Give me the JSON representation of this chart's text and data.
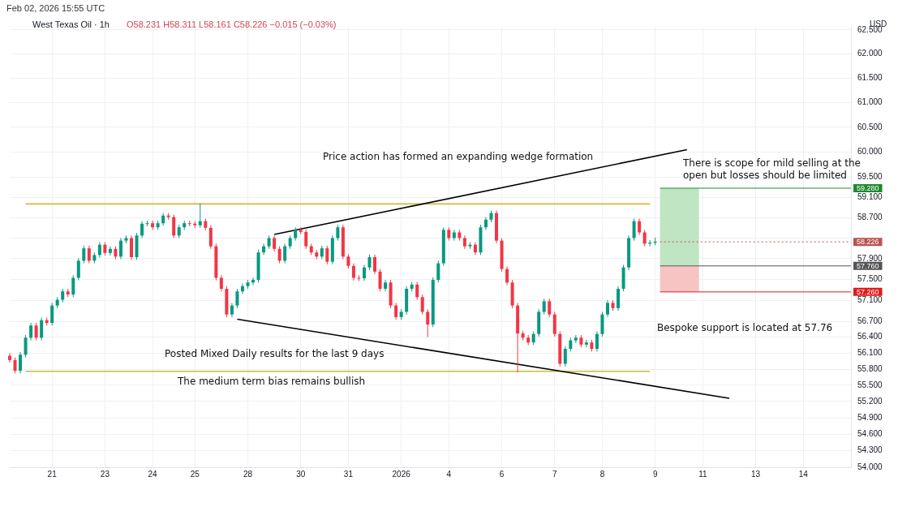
{
  "chart_data": {
    "type": "candlestick",
    "title": "West Texas Oil · 1h",
    "subtitle": "O58.231 H58.311 L58.161 C58.226 −0.015 (−0.03%)",
    "ylabel": "USD",
    "annotations": [
      "Feb 02, 2026 15:55 UTC",
      "Price action has formed an expanding wedge formation",
      "There is scope for mild selling at the open but losses should be limited",
      "Bespoke support is located at 57.76",
      "Posted Mixed Daily results for the last 9 days",
      "The medium term bias remains bullish"
    ],
    "categories": [
      null,
      null,
      null,
      null,
      null,
      null,
      null,
      null,
      "21",
      null,
      null,
      null,
      null,
      null,
      null,
      null,
      null,
      null,
      "23",
      null,
      null,
      null,
      null,
      null,
      null,
      null,
      null,
      "24",
      null,
      null,
      null,
      null,
      null,
      null,
      null,
      "25",
      null,
      null,
      null,
      null,
      null,
      null,
      null,
      null,
      null,
      "28",
      null,
      null,
      null,
      null,
      null,
      null,
      null,
      null,
      null,
      "30",
      null,
      null,
      null,
      null,
      null,
      null,
      null,
      null,
      "31",
      null,
      null,
      null,
      null,
      null,
      null,
      null,
      null,
      null,
      "2026",
      null,
      null,
      null,
      null,
      null,
      null,
      null,
      null,
      "4",
      null,
      null,
      null,
      null,
      null,
      null,
      null,
      null,
      null,
      "6",
      null,
      null,
      null,
      null,
      null,
      null,
      null,
      null,
      null,
      "7",
      null,
      null,
      null,
      null,
      null,
      null,
      null,
      null,
      "8",
      null,
      null,
      null,
      null,
      null,
      null,
      null,
      null,
      null,
      "9",
      null,
      null,
      null,
      null,
      null,
      null,
      null,
      null,
      "11",
      null,
      null,
      null,
      null,
      null,
      null,
      null,
      null,
      null,
      "13",
      null,
      null,
      null,
      null,
      null,
      null,
      null,
      null,
      "14",
      null,
      null,
      null,
      null,
      null,
      null,
      null,
      null,
      null
    ],
    "ohlc": [
      [
        56.05,
        56.1,
        55.92,
        55.97
      ],
      [
        55.97,
        56.02,
        55.72,
        55.77
      ],
      [
        55.77,
        56.12,
        55.72,
        56.07
      ],
      [
        56.07,
        56.44,
        56.02,
        56.39
      ],
      [
        56.39,
        56.67,
        56.34,
        56.62
      ],
      [
        56.62,
        56.67,
        56.34,
        56.39
      ],
      [
        56.39,
        56.77,
        56.34,
        56.72
      ],
      [
        56.72,
        56.77,
        56.62,
        56.67
      ],
      [
        56.67,
        57.05,
        56.62,
        57.0
      ],
      [
        57.0,
        57.16,
        56.95,
        57.11
      ],
      [
        57.11,
        57.32,
        57.06,
        57.27
      ],
      [
        57.27,
        57.32,
        57.16,
        57.21
      ],
      [
        57.21,
        57.58,
        57.16,
        57.53
      ],
      [
        57.53,
        57.91,
        57.48,
        57.86
      ],
      [
        57.86,
        58.15,
        57.81,
        58.1
      ],
      [
        58.1,
        58.15,
        57.81,
        57.86
      ],
      [
        57.86,
        58.02,
        57.81,
        57.97
      ],
      [
        57.97,
        58.22,
        57.92,
        58.17
      ],
      [
        58.17,
        58.22,
        57.96,
        58.01
      ],
      [
        58.01,
        58.14,
        57.96,
        58.09
      ],
      [
        58.09,
        58.14,
        57.89,
        57.94
      ],
      [
        57.94,
        58.3,
        57.89,
        58.25
      ],
      [
        58.25,
        58.35,
        58.2,
        58.3
      ],
      [
        58.3,
        58.35,
        57.88,
        57.93
      ],
      [
        57.93,
        58.4,
        57.88,
        58.35
      ],
      [
        58.35,
        58.63,
        58.3,
        58.58
      ],
      [
        58.58,
        58.64,
        58.53,
        58.59
      ],
      [
        58.59,
        58.64,
        58.46,
        58.51
      ],
      [
        58.51,
        58.64,
        58.46,
        58.59
      ],
      [
        58.59,
        58.79,
        58.54,
        58.74
      ],
      [
        58.74,
        58.79,
        58.66,
        58.71
      ],
      [
        58.71,
        58.76,
        58.3,
        58.35
      ],
      [
        58.35,
        58.56,
        58.3,
        58.51
      ],
      [
        58.51,
        58.64,
        58.46,
        58.59
      ],
      [
        58.59,
        58.64,
        58.53,
        58.58
      ],
      [
        58.58,
        58.63,
        58.5,
        58.55
      ],
      [
        58.55,
        58.98,
        58.5,
        58.63
      ],
      [
        58.63,
        58.68,
        58.45,
        58.5
      ],
      [
        58.5,
        58.55,
        58.09,
        58.14
      ],
      [
        58.14,
        58.19,
        57.48,
        57.53
      ],
      [
        57.53,
        57.58,
        57.27,
        57.32
      ],
      [
        57.32,
        57.37,
        56.78,
        56.83
      ],
      [
        56.83,
        57.05,
        56.78,
        57.0
      ],
      [
        57.0,
        57.32,
        56.95,
        57.27
      ],
      [
        57.27,
        57.42,
        57.22,
        57.37
      ],
      [
        57.37,
        57.49,
        57.32,
        57.44
      ],
      [
        57.44,
        57.54,
        57.39,
        57.49
      ],
      [
        57.49,
        58.07,
        57.44,
        58.02
      ],
      [
        58.02,
        58.19,
        57.97,
        58.14
      ],
      [
        58.14,
        58.35,
        58.09,
        58.3
      ],
      [
        58.3,
        58.35,
        58.04,
        58.09
      ],
      [
        58.09,
        58.14,
        57.81,
        57.86
      ],
      [
        57.86,
        58.19,
        57.81,
        58.14
      ],
      [
        58.14,
        58.35,
        58.09,
        58.3
      ],
      [
        58.3,
        58.51,
        58.25,
        58.46
      ],
      [
        58.46,
        58.51,
        58.37,
        58.42
      ],
      [
        58.42,
        58.47,
        58.09,
        58.14
      ],
      [
        58.14,
        58.19,
        57.97,
        58.02
      ],
      [
        58.02,
        58.07,
        57.89,
        57.94
      ],
      [
        57.94,
        58.15,
        57.89,
        58.1
      ],
      [
        58.1,
        58.15,
        57.79,
        57.84
      ],
      [
        57.84,
        58.35,
        57.79,
        58.3
      ],
      [
        58.3,
        58.56,
        58.25,
        58.51
      ],
      [
        58.51,
        58.56,
        57.89,
        57.94
      ],
      [
        57.94,
        57.99,
        57.71,
        57.76
      ],
      [
        57.76,
        57.81,
        57.48,
        57.53
      ],
      [
        57.53,
        57.58,
        57.47,
        57.52
      ],
      [
        57.52,
        57.78,
        57.47,
        57.73
      ],
      [
        57.73,
        57.98,
        57.68,
        57.93
      ],
      [
        57.93,
        57.98,
        57.6,
        57.65
      ],
      [
        57.65,
        57.7,
        57.27,
        57.32
      ],
      [
        57.32,
        57.49,
        57.27,
        57.44
      ],
      [
        57.44,
        57.49,
        56.95,
        57.0
      ],
      [
        57.0,
        57.05,
        56.73,
        56.78
      ],
      [
        56.78,
        56.93,
        56.73,
        56.88
      ],
      [
        56.88,
        57.37,
        56.83,
        57.32
      ],
      [
        57.32,
        57.45,
        57.27,
        57.4
      ],
      [
        57.4,
        57.45,
        57.11,
        57.16
      ],
      [
        57.16,
        57.21,
        56.83,
        56.88
      ],
      [
        56.88,
        56.93,
        56.4,
        56.64
      ],
      [
        56.64,
        57.54,
        56.59,
        57.49
      ],
      [
        57.49,
        57.86,
        57.44,
        57.81
      ],
      [
        57.81,
        58.51,
        57.76,
        58.46
      ],
      [
        58.46,
        58.51,
        58.25,
        58.3
      ],
      [
        58.3,
        58.46,
        58.25,
        58.41
      ],
      [
        58.41,
        58.46,
        58.25,
        58.3
      ],
      [
        58.3,
        58.35,
        58.09,
        58.14
      ],
      [
        58.14,
        58.22,
        58.09,
        58.17
      ],
      [
        58.17,
        58.22,
        57.97,
        58.02
      ],
      [
        58.02,
        58.56,
        57.97,
        58.51
      ],
      [
        58.51,
        58.71,
        58.46,
        58.66
      ],
      [
        58.66,
        58.84,
        58.61,
        58.79
      ],
      [
        58.79,
        58.84,
        58.2,
        58.25
      ],
      [
        58.25,
        58.3,
        57.65,
        57.7
      ],
      [
        57.7,
        57.75,
        57.39,
        57.44
      ],
      [
        57.44,
        57.49,
        56.95,
        57.0
      ],
      [
        57.0,
        57.05,
        55.74,
        56.47
      ],
      [
        56.47,
        56.52,
        56.34,
        56.39
      ],
      [
        56.39,
        56.44,
        56.25,
        56.3
      ],
      [
        56.3,
        56.51,
        56.25,
        56.46
      ],
      [
        56.46,
        56.93,
        56.41,
        56.88
      ],
      [
        56.88,
        57.13,
        56.83,
        57.08
      ],
      [
        57.08,
        57.13,
        56.78,
        56.83
      ],
      [
        56.83,
        56.88,
        56.41,
        56.46
      ],
      [
        56.46,
        56.51,
        55.85,
        55.9
      ],
      [
        55.9,
        56.23,
        55.85,
        56.18
      ],
      [
        56.18,
        56.39,
        56.13,
        56.34
      ],
      [
        56.34,
        56.44,
        56.29,
        56.39
      ],
      [
        56.39,
        56.44,
        56.21,
        56.26
      ],
      [
        56.26,
        56.35,
        56.21,
        56.3
      ],
      [
        56.3,
        56.35,
        56.13,
        56.18
      ],
      [
        56.18,
        56.51,
        56.13,
        56.46
      ],
      [
        56.46,
        56.88,
        56.41,
        56.83
      ],
      [
        56.83,
        57.1,
        56.78,
        57.05
      ],
      [
        57.05,
        57.1,
        56.9,
        56.95
      ],
      [
        56.95,
        57.37,
        56.9,
        57.32
      ],
      [
        57.32,
        57.78,
        57.27,
        57.73
      ],
      [
        57.73,
        58.35,
        57.68,
        58.3
      ],
      [
        58.3,
        58.68,
        58.25,
        58.63
      ],
      [
        58.63,
        58.68,
        58.36,
        58.41
      ],
      [
        58.41,
        58.46,
        58.14,
        58.19
      ],
      [
        58.19,
        58.26,
        58.14,
        58.21
      ],
      [
        58.21,
        58.31,
        58.16,
        58.23
      ],
      null,
      null,
      null,
      null,
      null,
      null,
      null,
      null,
      null,
      null,
      null,
      null,
      null,
      null,
      null,
      null,
      null,
      null,
      null,
      null,
      null,
      null,
      null,
      null,
      null,
      null,
      null,
      null,
      null,
      null,
      null,
      null,
      null,
      null,
      null,
      null,
      null
    ],
    "series": [
      {
        "type": "line",
        "color": "#000000",
        "values": [
          null,
          null,
          null,
          null,
          null,
          null,
          null,
          null,
          null,
          null,
          null,
          null,
          null,
          null,
          null,
          null,
          null,
          null,
          null,
          null,
          null,
          null,
          null,
          null,
          null,
          null,
          null,
          null,
          null,
          null,
          null,
          null,
          null,
          null,
          null,
          null,
          null,
          null,
          null,
          null,
          null,
          null,
          null,
          null,
          null,
          null,
          null,
          null,
          null,
          null,
          58.37,
          null,
          null,
          null,
          null,
          null,
          null,
          null,
          null,
          null,
          null,
          null,
          null,
          null,
          null,
          null,
          null,
          null,
          null,
          null,
          null,
          null,
          null,
          null,
          null,
          null,
          null,
          null,
          null,
          null,
          null,
          null,
          null,
          null,
          null,
          null,
          null,
          null,
          null,
          null,
          null,
          null,
          null,
          null,
          null,
          null,
          null,
          null,
          null,
          null,
          null,
          null,
          null,
          null,
          null,
          null,
          null,
          null,
          null,
          null,
          null,
          null,
          null,
          null,
          null,
          null,
          null,
          null,
          null,
          null,
          null,
          null,
          null,
          null,
          null,
          null,
          null,
          null,
          60.05,
          null,
          null,
          null,
          null,
          null,
          null,
          null,
          null,
          null,
          null,
          null,
          null,
          null,
          null,
          null,
          null,
          null,
          null,
          null,
          null,
          null,
          null,
          null,
          null,
          null,
          null,
          null,
          null,
          null,
          null,
          null
        ]
      },
      {
        "type": "line",
        "color": "#000000",
        "values": [
          null,
          null,
          null,
          null,
          null,
          null,
          null,
          null,
          null,
          null,
          null,
          null,
          null,
          null,
          null,
          null,
          null,
          null,
          null,
          null,
          null,
          null,
          null,
          null,
          null,
          null,
          null,
          null,
          null,
          null,
          null,
          null,
          null,
          null,
          null,
          null,
          null,
          null,
          null,
          null,
          null,
          null,
          null,
          56.74,
          null,
          null,
          null,
          null,
          null,
          null,
          null,
          null,
          null,
          null,
          null,
          null,
          null,
          null,
          null,
          null,
          null,
          null,
          null,
          null,
          null,
          null,
          null,
          null,
          null,
          null,
          null,
          null,
          null,
          null,
          null,
          null,
          null,
          null,
          null,
          null,
          null,
          null,
          null,
          null,
          null,
          null,
          null,
          null,
          null,
          null,
          null,
          null,
          null,
          null,
          null,
          null,
          null,
          null,
          null,
          null,
          null,
          null,
          null,
          null,
          null,
          null,
          null,
          null,
          null,
          null,
          null,
          null,
          null,
          null,
          null,
          null,
          null,
          null,
          null,
          null,
          null,
          null,
          null,
          null,
          null,
          null,
          null,
          null,
          null,
          null,
          null,
          null,
          null,
          null,
          null,
          null,
          55.26,
          null,
          null,
          null,
          null,
          null,
          null,
          null,
          null,
          null,
          null,
          null,
          null,
          null,
          null,
          null,
          null,
          null,
          null,
          null,
          null,
          null,
          null,
          null
        ]
      },
      {
        "type": "line",
        "color": "#d4b73c",
        "values": [
          null,
          null,
          null,
          58.97,
          null,
          null,
          null,
          null,
          null,
          null,
          null,
          null,
          null,
          null,
          null,
          null,
          null,
          null,
          null,
          null,
          null,
          null,
          null,
          null,
          null,
          null,
          null,
          null,
          null,
          null,
          null,
          null,
          null,
          null,
          null,
          null,
          null,
          null,
          null,
          null,
          null,
          null,
          null,
          null,
          null,
          null,
          null,
          null,
          null,
          null,
          null,
          null,
          null,
          null,
          null,
          null,
          null,
          null,
          null,
          null,
          null,
          null,
          null,
          null,
          null,
          null,
          null,
          null,
          null,
          null,
          null,
          null,
          null,
          null,
          null,
          null,
          null,
          null,
          null,
          null,
          null,
          null,
          null,
          null,
          null,
          null,
          null,
          null,
          null,
          null,
          null,
          null,
          null,
          null,
          null,
          null,
          null,
          null,
          null,
          null,
          null,
          null,
          null,
          null,
          null,
          null,
          null,
          null,
          null,
          null,
          null,
          null,
          null,
          null,
          null,
          null,
          null,
          null,
          null,
          null,
          null,
          58.97,
          null,
          null,
          null,
          null,
          null,
          null,
          null,
          null,
          null,
          null,
          null,
          null,
          null,
          null,
          null,
          null,
          null,
          null,
          null,
          null,
          null,
          null,
          null,
          null,
          null,
          null,
          null,
          null,
          null,
          null,
          null,
          null,
          null,
          null,
          null,
          null,
          null,
          null
        ]
      },
      {
        "type": "line",
        "color": "#d4b73c",
        "values": [
          null,
          null,
          null,
          55.76,
          null,
          null,
          null,
          null,
          null,
          null,
          null,
          null,
          null,
          null,
          null,
          null,
          null,
          null,
          null,
          null,
          null,
          null,
          null,
          null,
          null,
          null,
          null,
          null,
          null,
          null,
          null,
          null,
          null,
          null,
          null,
          null,
          null,
          null,
          null,
          null,
          null,
          null,
          null,
          null,
          null,
          null,
          null,
          null,
          null,
          null,
          null,
          null,
          null,
          null,
          null,
          null,
          null,
          null,
          null,
          null,
          null,
          null,
          null,
          null,
          null,
          null,
          null,
          null,
          null,
          null,
          null,
          null,
          null,
          null,
          null,
          null,
          null,
          null,
          null,
          null,
          null,
          null,
          null,
          null,
          null,
          null,
          null,
          null,
          null,
          null,
          null,
          null,
          null,
          null,
          null,
          null,
          null,
          null,
          null,
          null,
          null,
          null,
          null,
          null,
          null,
          null,
          null,
          null,
          null,
          null,
          null,
          null,
          null,
          null,
          null,
          null,
          null,
          null,
          null,
          null,
          null,
          55.76,
          null,
          null,
          null,
          null,
          null,
          null,
          null,
          null,
          null,
          null,
          null,
          null,
          null,
          null,
          null,
          null,
          null,
          null,
          null,
          null,
          null,
          null,
          null,
          null,
          null,
          null,
          null,
          null,
          null,
          null,
          null,
          null,
          null,
          null,
          null,
          null,
          null,
          null
        ]
      }
    ],
    "bands": [
      {
        "axis": "y",
        "from": 57.76,
        "to": 59.28,
        "color": "#bfe5c2"
      },
      {
        "axis": "y",
        "from": 57.26,
        "to": 57.76,
        "color": "#f8c3c3"
      }
    ],
    "ref_lines": [
      {
        "axis": "y",
        "value": 59.28,
        "label": "59.280",
        "color": "#1e8a2e"
      },
      {
        "axis": "y",
        "value": 58.226,
        "label": "58.226",
        "color": "#b85450",
        "line_style": "dotted"
      },
      {
        "axis": "y",
        "value": 57.76,
        "label": "57.760",
        "color": "#555555"
      },
      {
        "axis": "y",
        "value": 57.26,
        "label": "57.260",
        "color": "#e01b1b"
      }
    ],
    "ylim": [
      54,
      62.55
    ],
    "yticks": [
      {
        "value": 54,
        "label": "54.000"
      },
      {
        "value": 54.3,
        "label": "54.300"
      },
      {
        "value": 54.6,
        "label": "54.600"
      },
      {
        "value": 54.9,
        "label": "54.900"
      },
      {
        "value": 55.2,
        "label": "55.200"
      },
      {
        "value": 55.5,
        "label": "55.500"
      },
      {
        "value": 55.8,
        "label": "55.800"
      },
      {
        "value": 56.1,
        "label": "56.100"
      },
      {
        "value": 56.4,
        "label": "56.400"
      },
      {
        "value": 56.7,
        "label": "56.700"
      },
      {
        "value": 57.1,
        "label": "57.100"
      },
      {
        "value": 57.5,
        "label": "57.500"
      },
      {
        "value": 57.9,
        "label": "57.900"
      },
      {
        "value": 58.3,
        "label": null
      },
      {
        "value": 58.7,
        "label": "58.700"
      },
      {
        "value": 59.1,
        "label": "59.100"
      },
      {
        "value": 59.5,
        "label": "59.500"
      },
      {
        "value": 60,
        "label": "60.000"
      },
      {
        "value": 60.5,
        "label": "60.500"
      },
      {
        "value": 61,
        "label": "61.000"
      },
      {
        "value": 61.5,
        "label": "61.500"
      },
      {
        "value": 62,
        "label": "62.000"
      },
      {
        "value": 62.5,
        "label": "62.500"
      }
    ],
    "log": "y",
    "grid": true,
    "legend": false
  }
}
